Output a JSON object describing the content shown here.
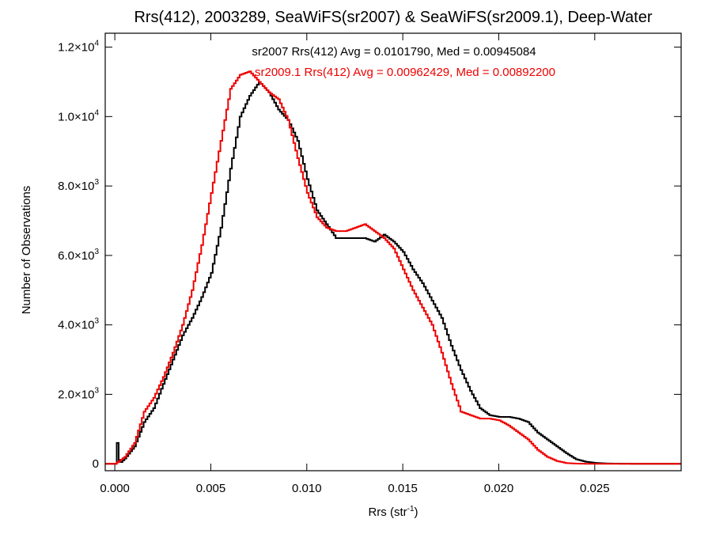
{
  "chart_data": {
    "type": "line",
    "title": "Rrs(412), 2003289, SeaWiFS(sr2007) & SeaWiFS(sr2009.1), Deep-Water",
    "xlabel": {
      "base": "Rrs (str",
      "sup": "-1",
      "close": ")"
    },
    "ylabel": "Number of Observations",
    "xlim": [
      -0.0005,
      0.0295
    ],
    "ylim": [
      -200,
      12400
    ],
    "grid": false,
    "x_ticks": [
      {
        "value": 0.0,
        "label": "0.000"
      },
      {
        "value": 0.005,
        "label": "0.005"
      },
      {
        "value": 0.01,
        "label": "0.010"
      },
      {
        "value": 0.015,
        "label": "0.015"
      },
      {
        "value": 0.02,
        "label": "0.020"
      },
      {
        "value": 0.025,
        "label": "0.025"
      }
    ],
    "y_ticks": [
      {
        "value": 0,
        "mant": "0",
        "exp": ""
      },
      {
        "value": 2000,
        "mant": "2.0×10",
        "exp": "3"
      },
      {
        "value": 4000,
        "mant": "4.0×10",
        "exp": "3"
      },
      {
        "value": 6000,
        "mant": "6.0×10",
        "exp": "3"
      },
      {
        "value": 8000,
        "mant": "8.0×10",
        "exp": "3"
      },
      {
        "value": 10000,
        "mant": "1.0×10",
        "exp": "4"
      },
      {
        "value": 12000,
        "mant": "1.2×10",
        "exp": "4"
      }
    ],
    "annotations": [
      {
        "text": "sr2007 Rrs(412) Avg = 0.0101790, Med = 0.00945084",
        "color": "#000000"
      },
      {
        "text": "sr2009.1 Rrs(412) Avg = 0.00962429, Med = 0.00892200",
        "color": "#ee0000"
      }
    ],
    "series": [
      {
        "name": "sr2007",
        "color": "#000000",
        "x": [
          -0.0005,
          0.0,
          0.0001,
          0.0002,
          0.0003,
          0.0005,
          0.001,
          0.0015,
          0.002,
          0.0025,
          0.003,
          0.0035,
          0.004,
          0.0045,
          0.005,
          0.0055,
          0.006,
          0.0065,
          0.007,
          0.0075,
          0.008,
          0.0085,
          0.009,
          0.0095,
          0.01,
          0.0105,
          0.011,
          0.0115,
          0.012,
          0.0125,
          0.013,
          0.0135,
          0.014,
          0.0145,
          0.015,
          0.0155,
          0.016,
          0.0165,
          0.017,
          0.0175,
          0.018,
          0.0185,
          0.019,
          0.0195,
          0.02,
          0.0205,
          0.021,
          0.0215,
          0.022,
          0.0225,
          0.023,
          0.0235,
          0.024,
          0.0245,
          0.025,
          0.0255,
          0.026,
          0.027,
          0.028,
          0.029,
          0.0295
        ],
        "y": [
          0,
          0,
          600,
          100,
          50,
          150,
          500,
          1200,
          1600,
          2300,
          3000,
          3700,
          4200,
          4800,
          5500,
          6800,
          8500,
          10000,
          10600,
          11000,
          10700,
          10200,
          9900,
          9300,
          8200,
          7300,
          6900,
          6500,
          6500,
          6500,
          6500,
          6400,
          6600,
          6400,
          6100,
          5600,
          5200,
          4700,
          4200,
          3400,
          2700,
          2100,
          1600,
          1400,
          1350,
          1350,
          1300,
          1200,
          900,
          700,
          500,
          300,
          130,
          60,
          25,
          10,
          5,
          0,
          0,
          0,
          0
        ]
      },
      {
        "name": "sr2009.1",
        "color": "#ee0000",
        "x": [
          -0.0005,
          0.0,
          0.0005,
          0.001,
          0.0015,
          0.002,
          0.0025,
          0.003,
          0.0035,
          0.004,
          0.0045,
          0.005,
          0.0055,
          0.006,
          0.0065,
          0.007,
          0.0075,
          0.008,
          0.0085,
          0.009,
          0.0095,
          0.01,
          0.0105,
          0.011,
          0.0115,
          0.012,
          0.0125,
          0.013,
          0.0135,
          0.014,
          0.0145,
          0.015,
          0.0155,
          0.016,
          0.0165,
          0.017,
          0.0175,
          0.018,
          0.0185,
          0.019,
          0.0195,
          0.02,
          0.0205,
          0.021,
          0.0215,
          0.022,
          0.0225,
          0.023,
          0.0235,
          0.024,
          0.0245,
          0.025,
          0.026,
          0.027,
          0.028,
          0.029,
          0.0295
        ],
        "y": [
          0,
          0,
          200,
          600,
          1500,
          1900,
          2500,
          3200,
          4000,
          5000,
          6300,
          7800,
          9300,
          10800,
          11200,
          11300,
          11000,
          10700,
          10500,
          9900,
          8800,
          7800,
          7100,
          6800,
          6700,
          6700,
          6800,
          6900,
          6700,
          6500,
          6200,
          5600,
          5000,
          4500,
          4000,
          3200,
          2300,
          1500,
          1400,
          1300,
          1300,
          1250,
          1100,
          900,
          700,
          400,
          200,
          80,
          20,
          5,
          0,
          0,
          0,
          0,
          0,
          0,
          0
        ]
      }
    ]
  }
}
